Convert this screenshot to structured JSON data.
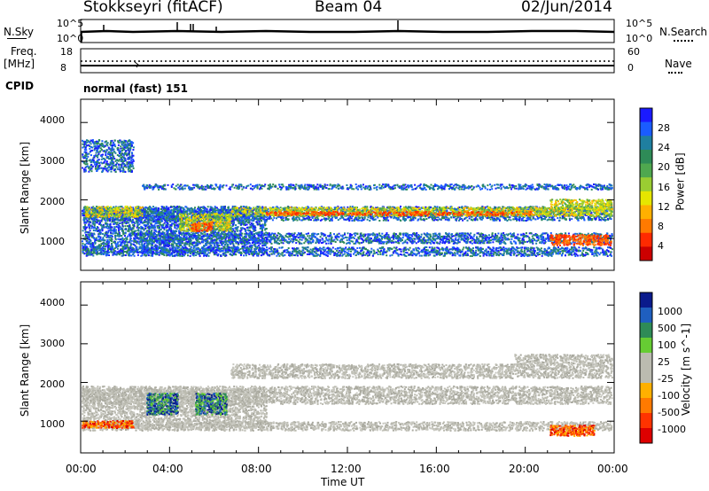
{
  "header": {
    "station": "Stokkseyri (fitACF)",
    "beam": "Beam 04",
    "date": "02/Jun/2014"
  },
  "top_panels": {
    "nsky_label": "N.Sky",
    "nsky_ticks": [
      "10^5",
      "10^0"
    ],
    "nsearch_label": "N.Search",
    "nsearch_ticks": [
      "10^5",
      "10^0"
    ],
    "freq_label": "Freq.",
    "freq_unit": "[MHz]",
    "freq_ticks": [
      "18",
      "8"
    ],
    "nave_label": "Nave",
    "nave_ticks": [
      "60",
      "0"
    ],
    "cpid_label": "CPID",
    "cpid_value": "normal (fast) 151"
  },
  "panels": {
    "y_axis_label": "Slant Range [km]",
    "y_ticks": [
      "4000",
      "3000",
      "2000",
      "1000"
    ],
    "x_axis_label": "Time UT",
    "x_ticks": [
      "00:00",
      "04:00",
      "08:00",
      "12:00",
      "16:00",
      "20:00",
      "00:00"
    ]
  },
  "colorbars": {
    "power": {
      "label": "Power [dB]",
      "ticks": [
        "28",
        "24",
        "20",
        "16",
        "12",
        "8",
        "4"
      ],
      "colors": [
        "#1a1aff",
        "#1a5cff",
        "#1f7fa0",
        "#2e8b57",
        "#4fa84f",
        "#9acd32",
        "#e6e600",
        "#ffb000",
        "#ff7a00",
        "#ff2a00",
        "#cc0000"
      ]
    },
    "velocity": {
      "label": "Velocity [m s^-1]",
      "ticks": [
        "1000",
        "500",
        "100",
        "25",
        "-25",
        "-100",
        "-500",
        "-1000"
      ],
      "colors": [
        "#0a1a8c",
        "#1f5fbf",
        "#2e8b57",
        "#66cc33",
        "#bbbbb0",
        "#bbbbb0",
        "#ffb000",
        "#ff7a00",
        "#ff3300",
        "#dd0000"
      ]
    }
  },
  "chart_data": [
    {
      "type": "heatmap",
      "title": "Stokkseyri (fitACF) Beam 04 02/Jun/2014",
      "xlabel": "Time UT",
      "ylabel": "Slant Range [km]",
      "ylim": [
        180,
        4600
      ],
      "colorbar_label": "Power [dB]",
      "colorbar_range": [
        0,
        30
      ],
      "x": [
        "00:00",
        "04:00",
        "08:00",
        "12:00",
        "16:00",
        "20:00",
        "00:00"
      ]
    },
    {
      "type": "heatmap",
      "title": "Stokkseyri (fitACF) Beam 04 02/Jun/2014",
      "xlabel": "Time UT",
      "ylabel": "Slant Range [km]",
      "ylim": [
        180,
        4600
      ],
      "colorbar_label": "Velocity [m s^-1]",
      "colorbar_range": [
        -1000,
        1000
      ],
      "x": [
        "00:00",
        "04:00",
        "08:00",
        "12:00",
        "16:00",
        "20:00",
        "00:00"
      ]
    }
  ]
}
